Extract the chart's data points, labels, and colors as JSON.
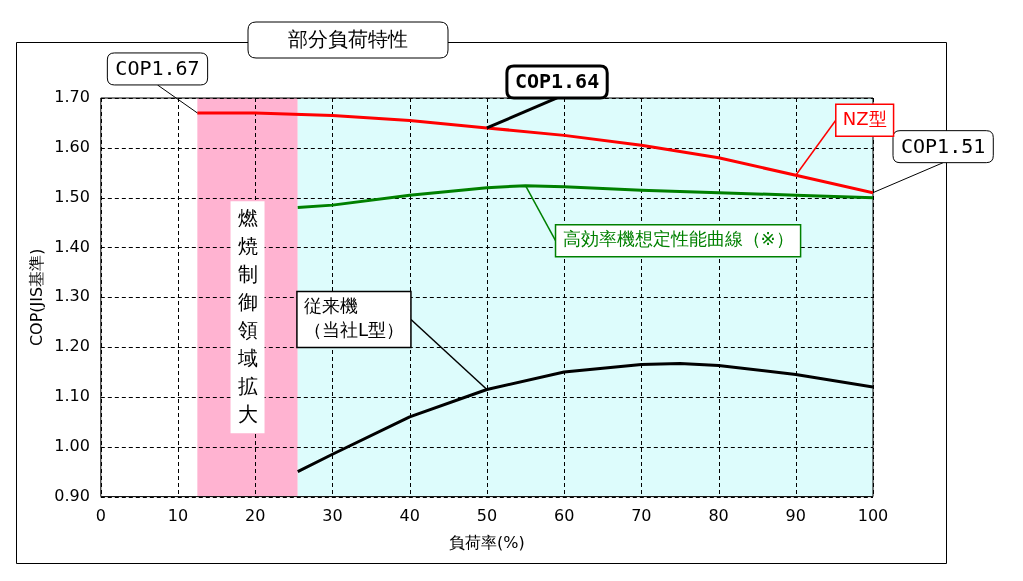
{
  "chart_data": {
    "type": "line",
    "title": "部分負荷特性",
    "xlabel": "負荷率(%)",
    "ylabel": "COP(JIS基準)",
    "xlim": [
      0,
      100
    ],
    "xticks": [
      0,
      10,
      20,
      30,
      40,
      50,
      60,
      70,
      80,
      90,
      100
    ],
    "ylim": [
      0.9,
      1.7
    ],
    "yticks": [
      {
        "value": 0.9,
        "label": "0.90"
      },
      {
        "value": 1.0,
        "label": "1.00"
      },
      {
        "value": 1.1,
        "label": "1.10"
      },
      {
        "value": 1.2,
        "label": "1.20"
      },
      {
        "value": 1.3,
        "label": "1.30"
      },
      {
        "value": 1.4,
        "label": "1.40"
      },
      {
        "value": 1.5,
        "label": "1.50"
      },
      {
        "value": 1.6,
        "label": "1.60"
      },
      {
        "value": 1.7,
        "label": "1.70"
      }
    ],
    "grid": true,
    "legend": false,
    "marker": "none",
    "line_style": "solid",
    "series": [
      {
        "name": "NZ型",
        "color": "#ff0000",
        "x": [
          12.5,
          20,
          30,
          40,
          50,
          60,
          70,
          80,
          90,
          100
        ],
        "values": [
          1.67,
          1.67,
          1.665,
          1.655,
          1.64,
          1.625,
          1.605,
          1.58,
          1.545,
          1.51
        ]
      },
      {
        "name": "高効率機想定性能曲線（※）",
        "color": "#008000",
        "x": [
          25.5,
          30,
          40,
          50,
          55,
          60,
          70,
          80,
          90,
          100
        ],
        "values": [
          1.48,
          1.485,
          1.505,
          1.52,
          1.524,
          1.522,
          1.515,
          1.51,
          1.505,
          1.5
        ]
      },
      {
        "name": "従来機（当社L型）",
        "color": "#000000",
        "x": [
          25.5,
          30,
          40,
          50,
          60,
          70,
          75,
          80,
          90,
          100
        ],
        "values": [
          0.95,
          0.985,
          1.06,
          1.115,
          1.15,
          1.165,
          1.167,
          1.163,
          1.145,
          1.12
        ]
      }
    ],
    "bands": [
      {
        "axis": "x",
        "from": 12.5,
        "to": 25.5,
        "label": "燃焼制御領域拡大",
        "color": "#ffb3d1"
      },
      {
        "axis": "x",
        "from": 25.5,
        "to": 100,
        "color": "#ddfcfc"
      }
    ],
    "annotations": [
      {
        "text": "COP1.67",
        "x": 12.5,
        "y": 1.67
      },
      {
        "text": "COP1.64",
        "x": 50,
        "y": 1.64
      },
      {
        "text": "COP1.51",
        "x": 100,
        "y": 1.51
      }
    ]
  }
}
